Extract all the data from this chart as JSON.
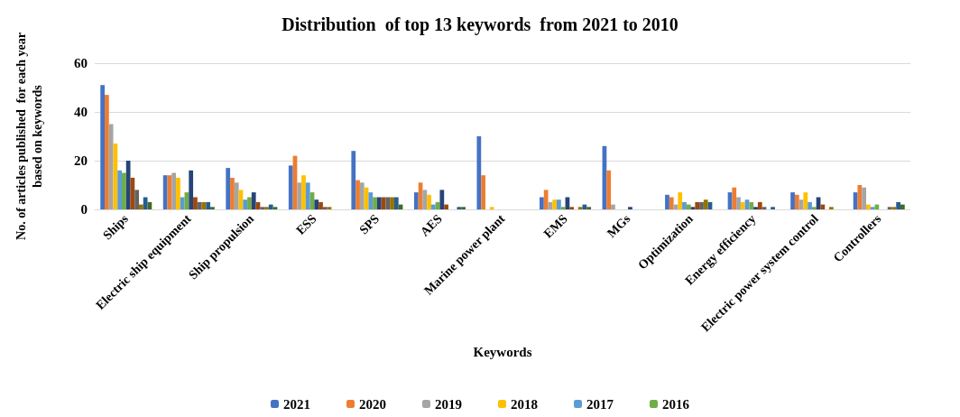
{
  "chart_data": {
    "type": "bar",
    "title": "Distribution  of top 13 keywords  from 2021 to 2010",
    "xlabel": "Keywords",
    "ylabel": "No. of articles published  for each year\nbased on keywords",
    "categories": [
      "Ships",
      "Electric ship equipment",
      "Ship propulsion",
      "ESS",
      "SPS",
      "AES",
      "Marine power plant",
      "EMS",
      "MGs",
      "Optimization",
      "Energy efficiency",
      "Electric power system control",
      "Controllers"
    ],
    "series": [
      {
        "name": "2021",
        "color": "#4472c4",
        "values": [
          51,
          14,
          17,
          18,
          24,
          7,
          30,
          5,
          26,
          6,
          7,
          7,
          7
        ]
      },
      {
        "name": "2020",
        "color": "#ed7d31",
        "values": [
          47,
          14,
          13,
          22,
          12,
          11,
          14,
          8,
          16,
          5,
          9,
          6,
          10
        ]
      },
      {
        "name": "2019",
        "color": "#a5a5a5",
        "values": [
          35,
          15,
          11,
          11,
          11,
          8,
          0,
          3,
          2,
          2,
          5,
          4,
          9
        ]
      },
      {
        "name": "2018",
        "color": "#ffc000",
        "values": [
          27,
          13,
          8,
          14,
          9,
          6,
          1,
          4,
          0,
          7,
          3,
          7,
          2
        ]
      },
      {
        "name": "2017",
        "color": "#5b9bd5",
        "values": [
          16,
          5,
          4,
          11,
          7,
          2,
          0,
          4,
          0,
          3,
          4,
          3,
          1
        ]
      },
      {
        "name": "2016",
        "color": "#70ad47",
        "values": [
          15,
          7,
          5,
          7,
          5,
          3,
          0,
          1,
          0,
          2,
          3,
          1,
          2
        ]
      },
      {
        "color": "#264478",
        "values": [
          20,
          16,
          7,
          4,
          5,
          8,
          0,
          5,
          1,
          1,
          1,
          5,
          0
        ]
      },
      {
        "color": "#9e480e",
        "values": [
          13,
          5,
          3,
          3,
          5,
          2,
          0,
          1,
          0,
          3,
          3,
          2,
          0
        ]
      },
      {
        "color": "#636363",
        "values": [
          8,
          3,
          1,
          1,
          5,
          0,
          0,
          0,
          0,
          3,
          1,
          0,
          1
        ]
      },
      {
        "color": "#997300",
        "values": [
          2,
          3,
          1,
          1,
          5,
          0,
          0,
          1,
          0,
          4,
          0,
          1,
          1
        ]
      },
      {
        "color": "#255e91",
        "values": [
          5,
          3,
          2,
          0,
          5,
          1,
          0,
          2,
          0,
          3,
          1,
          0,
          3
        ]
      },
      {
        "color": "#43682b",
        "values": [
          3,
          1,
          1,
          0,
          2,
          1,
          0,
          1,
          0,
          0,
          0,
          0,
          2
        ]
      }
    ],
    "ylim": [
      0,
      60
    ],
    "yticks": [
      0,
      20,
      40,
      60
    ],
    "grid": "y",
    "legend": "bottom"
  }
}
